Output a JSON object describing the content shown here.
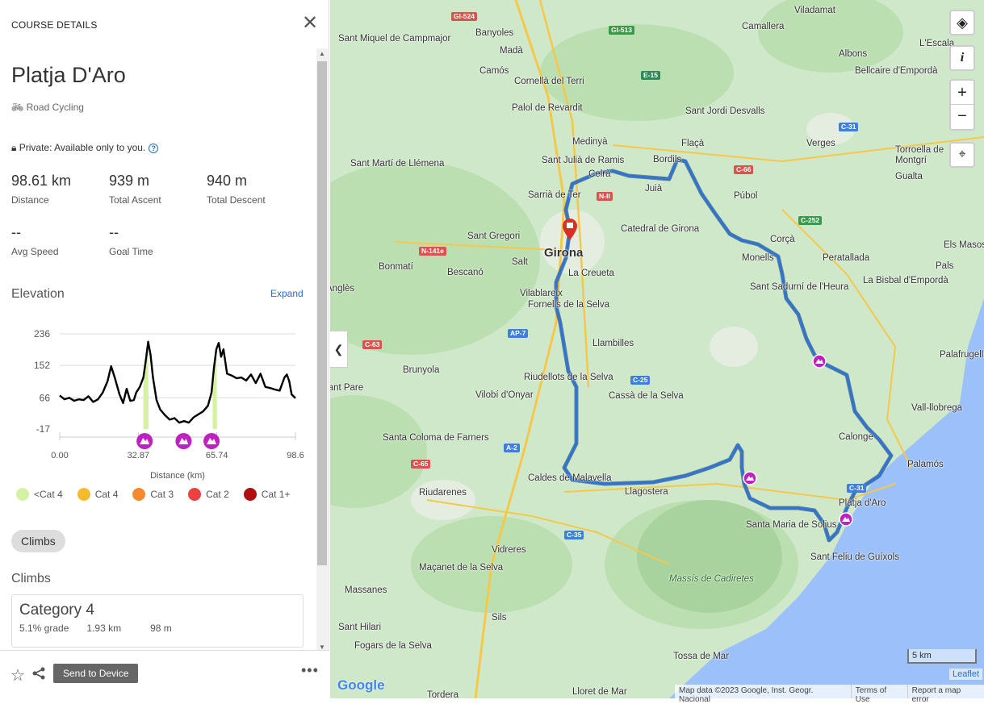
{
  "panel": {
    "header": "COURSE DETAILS",
    "title": "Platja D'Aro",
    "activity": "Road Cycling",
    "privacy": "Private: Available only to you.",
    "stats": [
      {
        "value": "98.61 km",
        "label": "Distance"
      },
      {
        "value": "939 m",
        "label": "Total Ascent"
      },
      {
        "value": "940 m",
        "label": "Total Descent"
      },
      {
        "value": "--",
        "label": "Avg Speed"
      },
      {
        "value": "--",
        "label": "Goal Time"
      }
    ],
    "elevation_title": "Elevation",
    "expand": "Expand",
    "legend": [
      {
        "label": "<Cat 4",
        "color": "#d5f2a4"
      },
      {
        "label": "Cat 4",
        "color": "#f5bb2f"
      },
      {
        "label": "Cat 3",
        "color": "#f5892f"
      },
      {
        "label": "Cat 2",
        "color": "#ee4040"
      },
      {
        "label": "Cat 1+",
        "color": "#b01010"
      }
    ],
    "climbs_pill": "Climbs",
    "climbs_heading": "Climbs",
    "climb_card": {
      "category": "Category 4",
      "grade": "5.1% grade",
      "length": "1.93 km",
      "gain": "98 m"
    },
    "send": "Send to Device"
  },
  "chart_data": {
    "type": "line",
    "xlabel": "Distance (km)",
    "ylabel": "",
    "xlim": [
      0,
      98.6
    ],
    "ylim": [
      -17,
      236
    ],
    "xticks": [
      "0.00",
      "32.87",
      "65.74",
      "98.6"
    ],
    "yticks": [
      "236",
      "152",
      "66",
      "-17"
    ],
    "grid": true,
    "x": [
      0,
      2,
      4,
      6,
      8,
      10,
      12,
      14,
      16,
      18,
      20,
      21.5,
      23,
      25,
      26.5,
      28,
      29.5,
      31,
      32,
      33.5,
      35,
      36,
      37,
      38,
      39,
      40.5,
      42,
      44,
      46,
      48,
      50,
      52,
      54,
      56,
      58,
      60,
      62,
      63.5,
      64.5,
      65.5,
      66.5,
      67.5,
      68.5,
      70,
      72,
      74,
      76,
      78,
      80,
      82,
      84,
      86,
      88,
      90,
      92,
      94,
      95,
      96,
      97,
      98.6
    ],
    "y": [
      72,
      62,
      66,
      58,
      62,
      60,
      70,
      55,
      62,
      80,
      110,
      150,
      120,
      75,
      52,
      90,
      58,
      60,
      80,
      95,
      120,
      165,
      215,
      180,
      120,
      60,
      35,
      20,
      8,
      12,
      0,
      4,
      0,
      14,
      22,
      30,
      45,
      80,
      145,
      195,
      212,
      175,
      195,
      130,
      125,
      118,
      120,
      112,
      128,
      105,
      130,
      95,
      92,
      88,
      85,
      120,
      128,
      110,
      75,
      65
    ],
    "climb_segments": [
      {
        "from": 35,
        "to": 37.2,
        "category": "<Cat 4"
      },
      {
        "from": 64,
        "to": 65.8,
        "category": "<Cat 4"
      }
    ],
    "climb_markers": [
      35.5,
      51.8,
      63.5
    ]
  },
  "map": {
    "labels": [
      "Sant Miquel de Campmajor",
      "Banyoles",
      "Madà",
      "Camós",
      "Cornellà del Terri",
      "Palol de Revardit",
      "Medinyà",
      "Sant Julià de Ramis",
      "Sarrià de Ter",
      "Bordils",
      "Celrà",
      "Juià",
      "Flaçà",
      "Sant Jordi Desvalls",
      "Camallera",
      "Viladamat",
      "L'Escala",
      "Albons",
      "Bellcaire d'Empordà",
      "Verges",
      "Torroella de Montgrí",
      "Gualta",
      "Púbol",
      "Corçà",
      "Sant Martí de Llémena",
      "Sant Gregori",
      "Catedral de Girona",
      "Girona",
      "Salt",
      "La Creueta",
      "Bescanó",
      "Bonmatí",
      "Anglès",
      "Vilablareix",
      "Fornells de la Selva",
      "Llambilles",
      "Riudellots de la Selva",
      "Cassà de la Selva",
      "Brunyola",
      "Vilobí d'Onyar",
      "Santa Coloma de Farners",
      "Caldes de Malavella",
      "Llagostera",
      "Riudarenes",
      "Vidreres",
      "Maçanet de la Selva",
      "Massanes",
      "Sant Sadurní de l'Heura",
      "La Bisbal d'Empordà",
      "Peratallada",
      "Monells",
      "Pals",
      "Els Masos de Pals",
      "Palafrugell",
      "Vall-llobrega",
      "Calonge",
      "Palamós",
      "Platja d'Aro",
      "Santa Maria de Solius",
      "Sant Feliu de Guíxols",
      "Massís de Cadiretes",
      "Tossa de Mar",
      "Lloret de Mar",
      "Tordera",
      "Fogars de la Selva",
      "Sils",
      "Sant Pare",
      "Sant Hilari"
    ],
    "roads": [
      "GI-524",
      "GI-513",
      "E-15",
      "N-II",
      "C-66",
      "C-252",
      "C-31",
      "N-141e",
      "C-63",
      "AP-7",
      "C-25",
      "A-2",
      "C-65",
      "C-35",
      "C-31"
    ],
    "scale": "5 km",
    "leaflet": "Leaflet",
    "attribution": [
      "Map data ©2023 Google, Inst. Geogr. Nacional",
      "Terms of Use",
      "Report a map error"
    ],
    "google": "Google",
    "colors": {
      "route": "#2e74d0",
      "land": "#cfe8c9",
      "sea": "#9cc0f9",
      "marker": "#c020c0",
      "pin": "#d93025"
    }
  }
}
